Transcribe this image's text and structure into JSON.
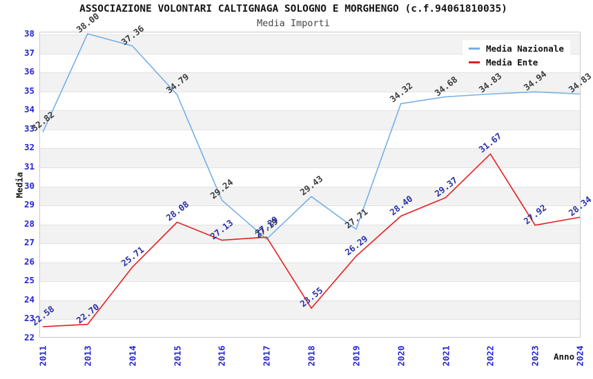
{
  "title": "ASSOCIAZIONE VOLONTARI CALTIGNAGA SOLOGNO E MORGHENGO (c.f.94061810035)",
  "subtitle": "Media Importi",
  "chart_data": {
    "type": "line",
    "categories": [
      "2011",
      "2013",
      "2014",
      "2015",
      "2016",
      "2017",
      "2018",
      "2019",
      "2020",
      "2021",
      "2022",
      "2023",
      "2024"
    ],
    "series": [
      {
        "name": "Media Nazionale",
        "color": "#74afe8",
        "label_color": "#3c3c3c",
        "values": [
          32.82,
          38.0,
          37.36,
          34.79,
          29.24,
          27.19,
          29.43,
          27.71,
          34.32,
          34.68,
          34.83,
          34.94,
          34.83
        ]
      },
      {
        "name": "Media Ente",
        "color": "#e61e1e",
        "label_color": "#2a31a8",
        "values": [
          22.58,
          22.7,
          25.71,
          28.08,
          27.13,
          27.29,
          23.55,
          26.29,
          28.4,
          29.37,
          31.67,
          27.92,
          28.34
        ]
      }
    ],
    "xlabel": "Anno",
    "ylabel": "Media",
    "ylim": [
      22,
      38
    ],
    "ytick_step": 1,
    "axis_tick_color": "#2424d8",
    "grid": "horizontal-alternating-bands",
    "legend_position": "top-right"
  }
}
